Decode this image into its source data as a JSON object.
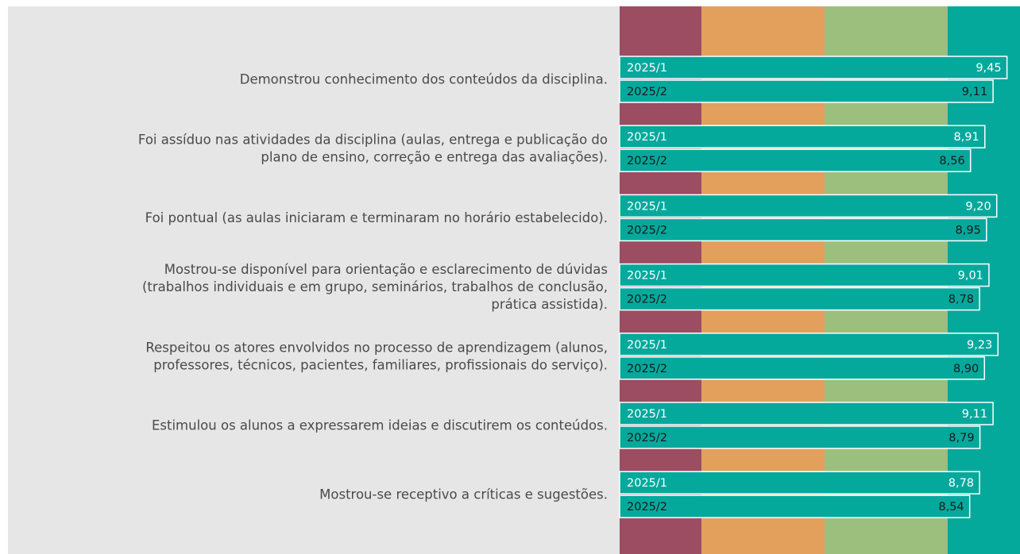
{
  "chart_data": {
    "type": "bar",
    "orientation": "horizontal",
    "categories": [
      [
        "Demonstrou conhecimento dos conteúdos da disciplina."
      ],
      [
        "Foi assíduo nas atividades da disciplina (aulas, entrega e publicação do",
        "plano de ensino, correção e entrega das avaliações)."
      ],
      [
        "Foi pontual (as aulas iniciaram e terminaram no horário estabelecido)."
      ],
      [
        "Mostrou-se disponível para orientação e esclarecimento de dúvidas",
        "(trabalhos individuais e em grupo, seminários, trabalhos de conclusão,",
        "prática assistida)."
      ],
      [
        "Respeitou os atores envolvidos no processo de aprendizagem (alunos,",
        "professores, técnicos, pacientes, familiares, profissionais do serviço)."
      ],
      [
        "Estimulou os alunos a expressarem ideias e discutirem os conteúdos."
      ],
      [
        "Mostrou-se receptivo a críticas e sugestões."
      ]
    ],
    "series": [
      {
        "name": "2025/1",
        "color": "#04a99c",
        "text_color": "#ffffff",
        "values": [
          9.45,
          8.91,
          9.2,
          9.01,
          9.23,
          9.11,
          8.78
        ],
        "value_labels": [
          "9,45",
          "8,91",
          "9,20",
          "9,01",
          "9,23",
          "9,11",
          "8,78"
        ]
      },
      {
        "name": "2025/2",
        "color": "#04a99c",
        "text_color": "#1a1a1a",
        "values": [
          9.11,
          8.56,
          8.95,
          8.78,
          8.9,
          8.79,
          8.54
        ],
        "value_labels": [
          "9,11",
          "8,56",
          "8,95",
          "8,78",
          "8,90",
          "8,79",
          "8,54"
        ]
      }
    ],
    "xlim": [
      0,
      10
    ],
    "bands": [
      {
        "from": 0,
        "to": 2,
        "color": "#9c4d62"
      },
      {
        "from": 2,
        "to": 5,
        "color": "#e2a05c"
      },
      {
        "from": 5,
        "to": 8,
        "color": "#9dbf7e"
      },
      {
        "from": 8,
        "to": 10,
        "color": "#04a99c"
      }
    ]
  }
}
